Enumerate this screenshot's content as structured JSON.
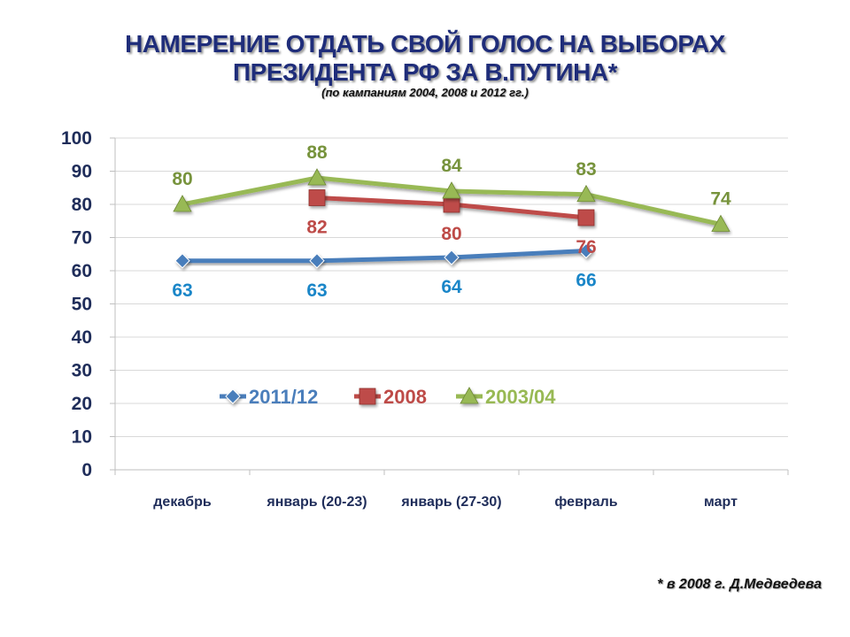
{
  "title_line1": "НАМЕРЕНИЕ ОТДАТЬ СВОЙ ГОЛОС НА ВЫБОРАХ",
  "title_line2": "ПРЕЗИДЕНТА РФ ЗА В.ПУТИНА*",
  "subtitle": "(по кампаниям 2004,   2008  и 2012 гг.)",
  "footnote": "* в 2008 г. Д.Медведева",
  "chart_data": {
    "type": "line",
    "categories": [
      "декабрь",
      "январь (20-23)",
      "январь (27-30)",
      "февраль",
      "март"
    ],
    "ylim": [
      0,
      100
    ],
    "yticks": [
      0,
      10,
      20,
      30,
      40,
      50,
      60,
      70,
      80,
      90,
      100
    ],
    "grid": true,
    "legend_position": "inside-bottom-left",
    "series": [
      {
        "name": "2011/12",
        "values": [
          63,
          63,
          64,
          66,
          null
        ],
        "color": "#4a7ebb",
        "label_color": "#1a86c8",
        "marker": "diamond"
      },
      {
        "name": "2008",
        "values": [
          null,
          82,
          80,
          76,
          null
        ],
        "color": "#be4b48",
        "label_color": "#be4b48",
        "marker": "square"
      },
      {
        "name": "2003/04",
        "values": [
          80,
          88,
          84,
          83,
          74
        ],
        "color": "#98b954",
        "label_color": "#77933c",
        "marker": "triangle"
      }
    ]
  }
}
